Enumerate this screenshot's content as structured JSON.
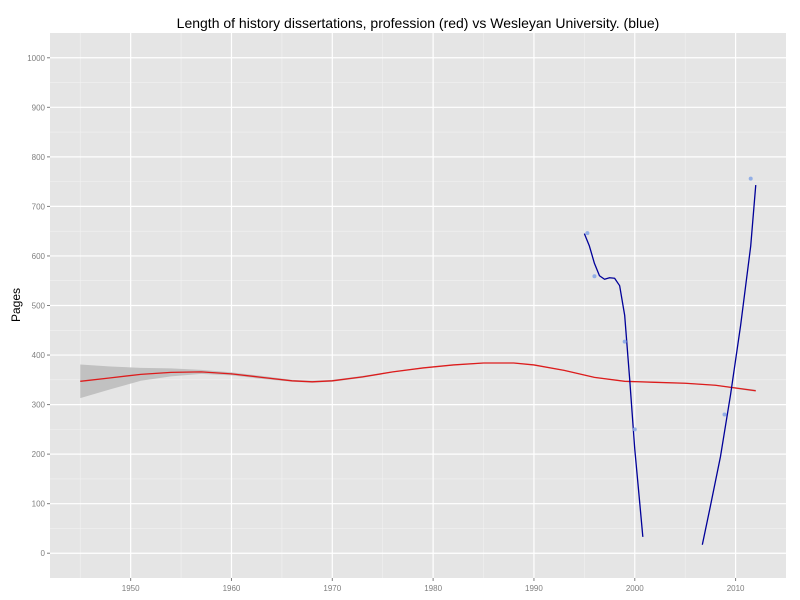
{
  "chart_data": {
    "type": "line",
    "title": "Length of history dissertations, profession (red) vs Wesleyan University. (blue)",
    "xlabel": "",
    "ylabel": "Pages",
    "xlim": [
      1942,
      2015
    ],
    "ylim": [
      -50,
      1050
    ],
    "x_ticks": [
      "1950",
      "1960",
      "1970",
      "1980",
      "1990",
      "2000",
      "2010"
    ],
    "y_ticks": [
      "0",
      "100",
      "200",
      "300",
      "400",
      "500",
      "600",
      "700",
      "800",
      "900",
      "1000"
    ],
    "grid": true,
    "colors": {
      "panel": "#e5e5e5",
      "grid_major": "#ffffff",
      "grid_minor": "#f2f2f2",
      "profession": "#dd1c1c",
      "band": "#bdbdbd",
      "wesleyan_line": "#000099",
      "wesleyan_points": "#8aa8e6"
    },
    "series": [
      {
        "points": [
          [
            1945,
            347
          ],
          [
            1948,
            354
          ],
          [
            1951,
            361
          ],
          [
            1954,
            365
          ],
          [
            1957,
            366
          ],
          [
            1960,
            362
          ],
          [
            1963,
            355
          ],
          [
            1966,
            348
          ],
          [
            1968,
            346
          ],
          [
            1970,
            348
          ],
          [
            1973,
            356
          ],
          [
            1976,
            366
          ],
          [
            1979,
            374
          ],
          [
            1982,
            380
          ],
          [
            1985,
            384
          ],
          [
            1988,
            384
          ],
          [
            1990,
            380
          ],
          [
            1993,
            369
          ],
          [
            1996,
            355
          ],
          [
            1999,
            347
          ],
          [
            2002,
            345
          ],
          [
            2005,
            343
          ],
          [
            2008,
            339
          ],
          [
            2012,
            328
          ]
        ],
        "band_upper": [
          [
            1945,
            381
          ],
          [
            1948,
            377
          ],
          [
            1951,
            374
          ],
          [
            1954,
            373
          ],
          [
            1957,
            370
          ],
          [
            1960,
            365
          ],
          [
            1963,
            358
          ],
          [
            1966,
            350
          ],
          [
            1968,
            348
          ],
          [
            1970,
            350
          ],
          [
            1973,
            358
          ],
          [
            1976,
            367
          ],
          [
            1979,
            375
          ],
          [
            1982,
            381
          ],
          [
            1985,
            385
          ],
          [
            1988,
            385
          ],
          [
            1990,
            381
          ],
          [
            1993,
            370
          ],
          [
            1996,
            356
          ],
          [
            1999,
            348
          ],
          [
            2002,
            346
          ],
          [
            2005,
            344
          ],
          [
            2008,
            340
          ],
          [
            2012,
            330
          ]
        ],
        "band_lower": [
          [
            1945,
            313
          ],
          [
            1948,
            331
          ],
          [
            1951,
            348
          ],
          [
            1954,
            357
          ],
          [
            1957,
            362
          ],
          [
            1960,
            359
          ],
          [
            1963,
            352
          ],
          [
            1966,
            346
          ],
          [
            1968,
            344
          ],
          [
            1970,
            346
          ],
          [
            1973,
            354
          ],
          [
            1976,
            365
          ],
          [
            1979,
            373
          ],
          [
            1982,
            379
          ],
          [
            1985,
            383
          ],
          [
            1988,
            383
          ],
          [
            1990,
            379
          ],
          [
            1993,
            368
          ],
          [
            1996,
            354
          ],
          [
            1999,
            346
          ],
          [
            2002,
            344
          ],
          [
            2005,
            342
          ],
          [
            2008,
            338
          ],
          [
            2012,
            326
          ]
        ]
      },
      {
        "segments": [
          [
            [
              1995.0,
              645
            ],
            [
              1995.5,
              620
            ],
            [
              1996.0,
              585
            ],
            [
              1996.5,
              560
            ],
            [
              1997.0,
              553
            ],
            [
              1997.5,
              556
            ],
            [
              1998.0,
              555
            ],
            [
              1998.5,
              540
            ],
            [
              1999.0,
              480
            ],
            [
              1999.5,
              350
            ],
            [
              2000.0,
              210
            ],
            [
              2000.5,
              100
            ],
            [
              2000.8,
              33
            ]
          ],
          [
            [
              2006.7,
              17
            ],
            [
              2007.5,
              95
            ],
            [
              2008.5,
              195
            ],
            [
              2009.5,
              320
            ],
            [
              2010.5,
              460
            ],
            [
              2011.5,
              620
            ],
            [
              2012.0,
              743
            ]
          ]
        ],
        "points": [
          [
            1995.3,
            646
          ],
          [
            1996.0,
            559
          ],
          [
            1999.0,
            427
          ],
          [
            2000.0,
            250
          ],
          [
            2008.9,
            280
          ],
          [
            2011.5,
            756
          ]
        ]
      }
    ]
  }
}
